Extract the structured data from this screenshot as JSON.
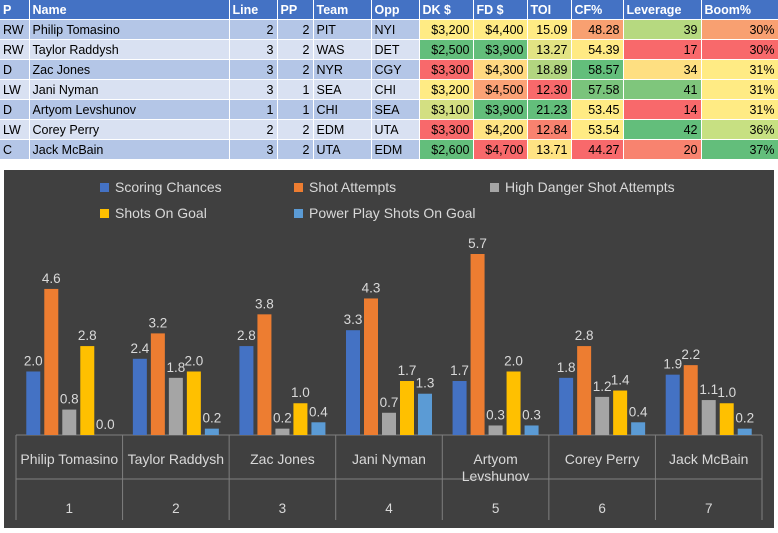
{
  "table": {
    "headers": [
      "P",
      "Name",
      "Line",
      "PP",
      "Team",
      "Opp",
      "DK $",
      "FD $",
      "TOI",
      "CF%",
      "Leverage",
      "Boom%"
    ],
    "rows": [
      [
        "RW",
        "Philip Tomasino",
        "2",
        "2",
        "PIT",
        "NYI",
        "$3,200",
        "$4,400",
        "15.09",
        "48.28",
        "39",
        "30%"
      ],
      [
        "RW",
        "Taylor Raddysh",
        "3",
        "2",
        "WAS",
        "DET",
        "$2,500",
        "$3,900",
        "13.27",
        "54.39",
        "17",
        "30%"
      ],
      [
        "D",
        "Zac Jones",
        "3",
        "2",
        "NYR",
        "CGY",
        "$3,300",
        "$4,300",
        "18.89",
        "58.57",
        "34",
        "31%"
      ],
      [
        "LW",
        "Jani Nyman",
        "3",
        "1",
        "SEA",
        "CHI",
        "$3,200",
        "$4,500",
        "12.30",
        "57.58",
        "41",
        "31%"
      ],
      [
        "D",
        "Artyom Levshunov",
        "1",
        "1",
        "CHI",
        "SEA",
        "$3,100",
        "$3,900",
        "21.23",
        "53.45",
        "14",
        "31%"
      ],
      [
        "LW",
        "Corey Perry",
        "2",
        "2",
        "EDM",
        "UTA",
        "$3,300",
        "$4,200",
        "12.84",
        "53.54",
        "42",
        "36%"
      ],
      [
        "C",
        "Jack McBain",
        "3",
        "2",
        "UTA",
        "EDM",
        "$2,600",
        "$4,700",
        "13.71",
        "44.27",
        "20",
        "37%"
      ]
    ],
    "cell_colors": [
      [
        null,
        null,
        null,
        null,
        null,
        null,
        "#ffeb84",
        "#ffeb84",
        "#ffeb84",
        "#f8a071",
        "#b6d980",
        "#f8a071"
      ],
      [
        null,
        null,
        null,
        null,
        null,
        null,
        "#63be7b",
        "#63be7b",
        "#e2e383",
        "#ffea84",
        "#f8696b",
        "#f8696b"
      ],
      [
        null,
        null,
        null,
        null,
        null,
        null,
        "#f8696b",
        "#ffd981",
        "#b2d580",
        "#63be7b",
        "#fedf81",
        "#ffeb84"
      ],
      [
        null,
        null,
        null,
        null,
        null,
        null,
        "#ffeb84",
        "#fba276",
        "#f8696b",
        "#7ac47c",
        "#7fc67c",
        "#ffeb84"
      ],
      [
        null,
        null,
        null,
        null,
        null,
        null,
        "#d3df82",
        "#63be7b",
        "#63be7b",
        "#ffeb84",
        "#f8696b",
        "#ffeb84"
      ],
      [
        null,
        null,
        null,
        null,
        null,
        null,
        "#f8696b",
        "#ffe483",
        "#f8826f",
        "#ffeb84",
        "#63be7b",
        "#c7e082"
      ],
      [
        null,
        null,
        null,
        null,
        null,
        null,
        "#63be7b",
        "#f8696b",
        "#ffe383",
        "#f8696b",
        "#f8836f",
        "#63be7b"
      ]
    ]
  },
  "chart_data": {
    "type": "bar",
    "categories": [
      "Philip Tomasino",
      "Taylor Raddysh",
      "Zac Jones",
      "Jani Nyman",
      "Artyom Levshunov",
      "Corey Perry",
      "Jack McBain"
    ],
    "category_index": [
      "1",
      "2",
      "3",
      "4",
      "5",
      "6",
      "7"
    ],
    "series": [
      {
        "name": "Scoring Chances",
        "color": "#4472c4",
        "values": [
          2.0,
          2.4,
          2.8,
          3.3,
          1.7,
          1.8,
          1.9
        ]
      },
      {
        "name": "Shot Attempts",
        "color": "#ed7d31",
        "values": [
          4.6,
          3.2,
          3.8,
          4.3,
          5.7,
          2.8,
          2.2
        ]
      },
      {
        "name": "High Danger Shot Attempts",
        "color": "#a5a5a5",
        "values": [
          0.8,
          1.8,
          0.2,
          0.7,
          0.3,
          1.2,
          1.1
        ]
      },
      {
        "name": "Shots On Goal",
        "color": "#ffc000",
        "values": [
          2.8,
          2.0,
          1.0,
          1.7,
          2.0,
          1.4,
          1.0
        ]
      },
      {
        "name": "Power Play Shots On Goal",
        "color": "#5b9bd5",
        "values": [
          0.0,
          0.2,
          0.4,
          1.3,
          0.3,
          0.4,
          0.2
        ]
      }
    ],
    "value_format": "0.0",
    "ylim": [
      0,
      6.2
    ],
    "grid": false,
    "legend_position": "top",
    "background": "#404040",
    "text_color": "#d9d9d9"
  }
}
